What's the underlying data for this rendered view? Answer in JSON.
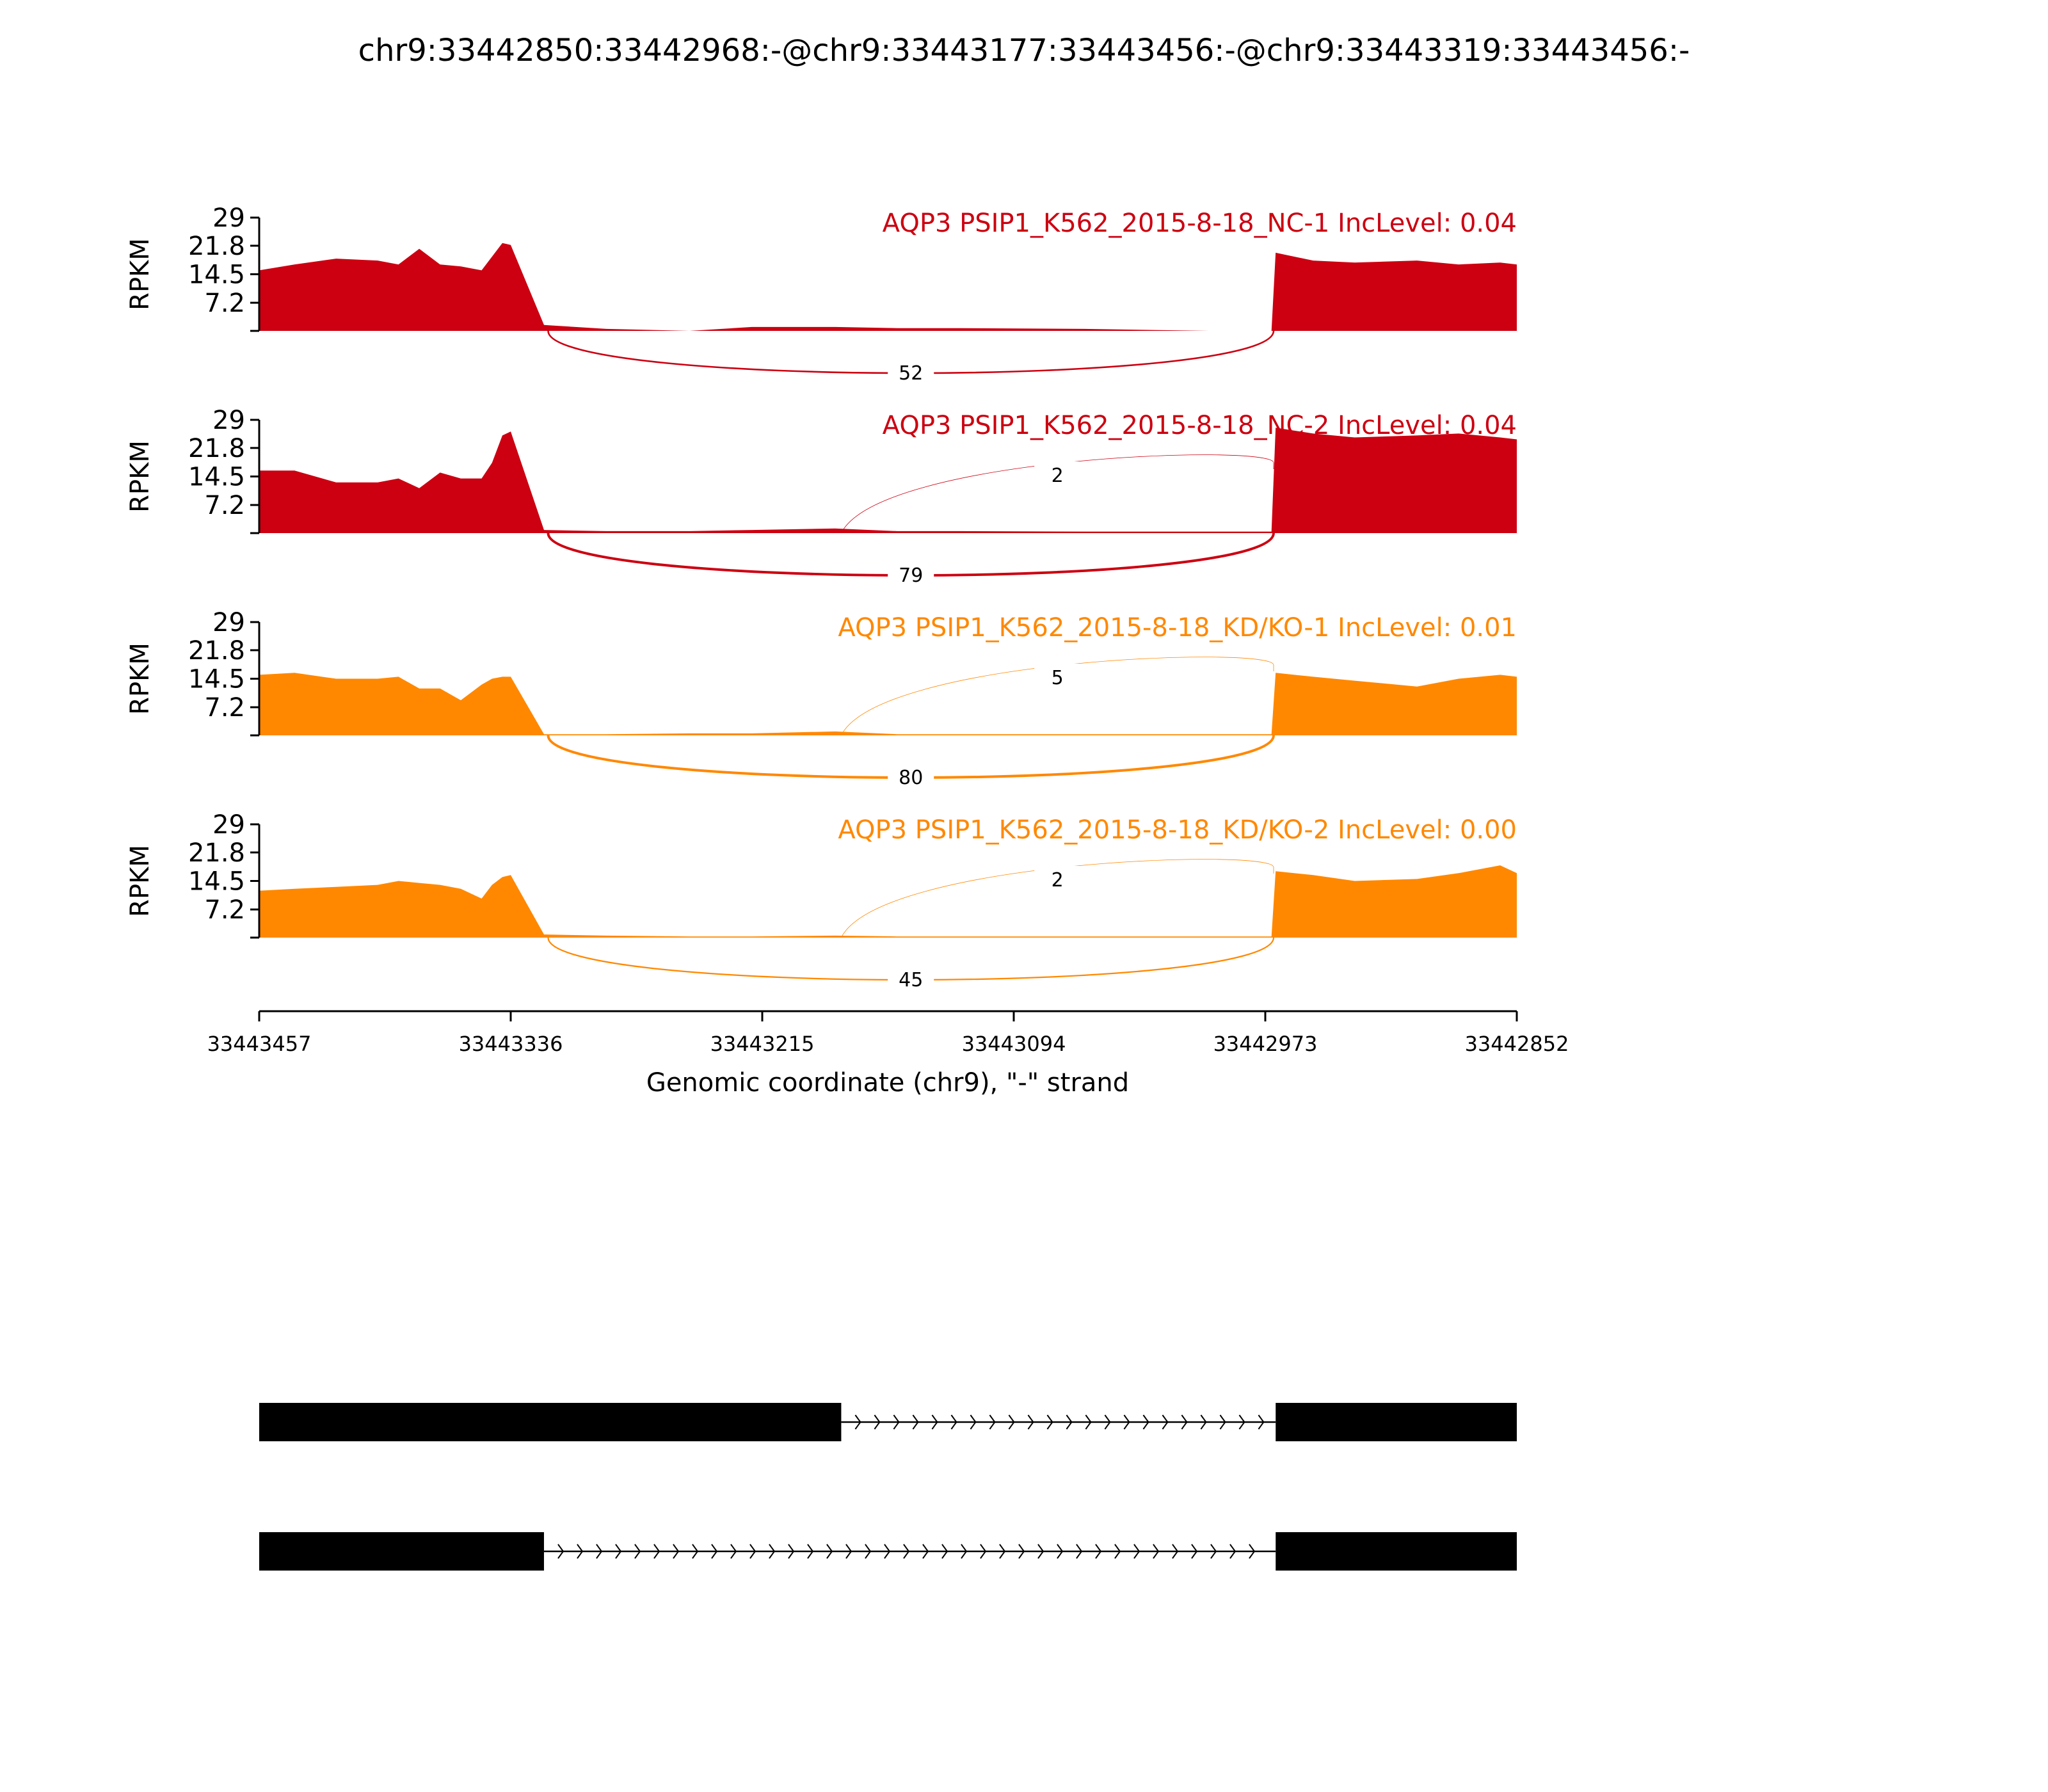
{
  "chart_data": {
    "type": "area",
    "title": "chr9:33442850:33442968:-@chr9:33443177:33443456:-@chr9:33443319:33443456:-",
    "xlabel": "Genomic coordinate (chr9), \"-\" strand",
    "ylabel": "RPKM",
    "xlim": [
      33443457,
      33442852
    ],
    "ylim": [
      0,
      29
    ],
    "yticks": [
      "7.2",
      "14.5",
      "21.8",
      "29"
    ],
    "xticks": [
      "33443457",
      "33443336",
      "33443215",
      "33443094",
      "33442973",
      "33442852"
    ],
    "samples": [
      {
        "label": "AQP3 PSIP1_K562_2015-8-18_NC-1 IncLevel: 0.04",
        "color": "#cc0011",
        "coverage": {
          "x": [
            33443457,
            33443440,
            33443420,
            33443400,
            33443390,
            33443380,
            33443370,
            33443360,
            33443350,
            33443345,
            33443340,
            33443336,
            33443320,
            33443290,
            33443250,
            33443220,
            33443180,
            33443150,
            33443120,
            33443060,
            33443000,
            33442970,
            33442968,
            33442950,
            33442930,
            33442900,
            33442880,
            33442860,
            33442852
          ],
          "y": [
            15.5,
            17,
            18.5,
            18,
            17,
            21,
            17,
            16.5,
            15.5,
            19,
            22.5,
            22,
            1.5,
            0.5,
            0,
            1,
            1,
            0.7,
            0.7,
            0.5,
            0,
            0,
            20,
            18,
            17.5,
            18,
            17,
            17.5,
            17
          ]
        },
        "junctions": [
          {
            "label": "52",
            "from": 33443318,
            "to": 33442969,
            "side": "below",
            "weight": 52
          }
        ]
      },
      {
        "label": "AQP3 PSIP1_K562_2015-8-18_NC-2 IncLevel: 0.04",
        "color": "#cc0011",
        "coverage": {
          "x": [
            33443457,
            33443440,
            33443420,
            33443400,
            33443390,
            33443380,
            33443370,
            33443360,
            33443350,
            33443345,
            33443340,
            33443336,
            33443320,
            33443290,
            33443250,
            33443220,
            33443180,
            33443150,
            33443120,
            33443060,
            33443000,
            33442970,
            33442968,
            33442950,
            33442930,
            33442900,
            33442880,
            33442860,
            33442852
          ],
          "y": [
            16,
            16,
            13,
            13,
            14,
            11.5,
            15.5,
            14,
            14,
            18,
            25,
            26,
            0.8,
            0.5,
            0.5,
            0.8,
            1.2,
            0.5,
            0.5,
            0.4,
            0.4,
            0.4,
            27,
            25.5,
            24.5,
            25,
            25.5,
            24.5,
            24
          ]
        },
        "junctions": [
          {
            "label": "2",
            "from": 33443177,
            "to": 33442969,
            "side": "above",
            "weight": 2
          },
          {
            "label": "79",
            "from": 33443318,
            "to": 33442969,
            "side": "below",
            "weight": 79
          }
        ]
      },
      {
        "label": "AQP3 PSIP1_K562_2015-8-18_KD/KO-1 IncLevel: 0.01",
        "color": "#ff8800",
        "coverage": {
          "x": [
            33443457,
            33443440,
            33443420,
            33443400,
            33443390,
            33443380,
            33443370,
            33443360,
            33443350,
            33443345,
            33443340,
            33443336,
            33443320,
            33443290,
            33443250,
            33443220,
            33443180,
            33443150,
            33443120,
            33443060,
            33443000,
            33442970,
            33442968,
            33442950,
            33442930,
            33442900,
            33442880,
            33442860,
            33442852
          ],
          "y": [
            15.5,
            16,
            14.5,
            14.5,
            15,
            12,
            12,
            9,
            13,
            14.5,
            15,
            15,
            0.3,
            0.3,
            0.5,
            0.5,
            1,
            0.3,
            0.3,
            0.3,
            0.3,
            0.3,
            16,
            15,
            14,
            12.5,
            14.5,
            15.5,
            15
          ]
        },
        "junctions": [
          {
            "label": "5",
            "from": 33443177,
            "to": 33442969,
            "side": "above",
            "weight": 5
          },
          {
            "label": "80",
            "from": 33443318,
            "to": 33442969,
            "side": "below",
            "weight": 80
          }
        ]
      },
      {
        "label": "AQP3 PSIP1_K562_2015-8-18_KD/KO-2 IncLevel: 0.00",
        "color": "#ff8800",
        "coverage": {
          "x": [
            33443457,
            33443440,
            33443420,
            33443400,
            33443390,
            33443380,
            33443370,
            33443360,
            33443350,
            33443345,
            33443340,
            33443336,
            33443320,
            33443290,
            33443250,
            33443220,
            33443180,
            33443150,
            33443120,
            33443060,
            33443000,
            33442970,
            33442968,
            33442950,
            33442930,
            33442900,
            33442880,
            33442860,
            33442852
          ],
          "y": [
            12,
            12.5,
            13,
            13.5,
            14.5,
            14,
            13.5,
            12.5,
            10,
            13.5,
            15.5,
            16,
            0.8,
            0.5,
            0.3,
            0.3,
            0.5,
            0.3,
            0.3,
            0.3,
            0.3,
            0.3,
            17,
            16,
            14.5,
            15,
            16.5,
            18.5,
            16.5
          ]
        },
        "junctions": [
          {
            "label": "2",
            "from": 33443177,
            "to": 33442969,
            "side": "above",
            "weight": 2
          },
          {
            "label": "45",
            "from": 33443318,
            "to": 33442969,
            "side": "below",
            "weight": 45
          }
        ]
      }
    ],
    "gene_models": [
      {
        "exons": [
          [
            33443457,
            33443177
          ],
          [
            33442968,
            33442852
          ]
        ],
        "intron": [
          33443177,
          33442968
        ]
      },
      {
        "exons": [
          [
            33443457,
            33443320
          ],
          [
            33442968,
            33442852
          ]
        ],
        "intron": [
          33443320,
          33442968
        ]
      }
    ]
  }
}
